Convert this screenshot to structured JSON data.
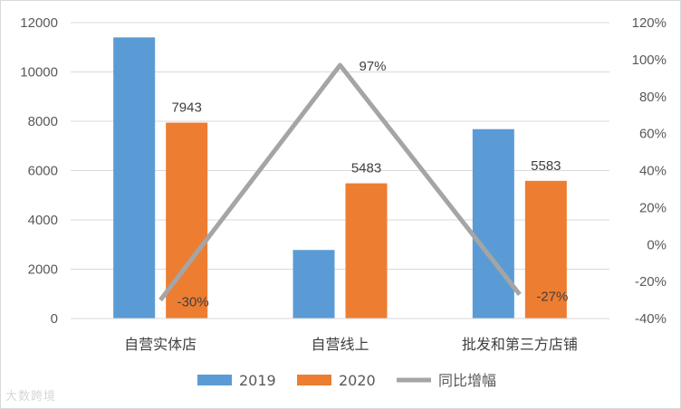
{
  "chart_data": {
    "type": "bar",
    "categories": [
      "自营实体店",
      "自营线上",
      "批发和第三方店铺"
    ],
    "series": [
      {
        "name": "2019",
        "kind": "bar",
        "axis": "left",
        "color": "#5B9BD5",
        "values": [
          11400,
          2780,
          7680
        ],
        "data_labels": [
          null,
          null,
          null
        ]
      },
      {
        "name": "2020",
        "kind": "bar",
        "axis": "left",
        "color": "#ED7D31",
        "values": [
          7943,
          5483,
          5583
        ],
        "data_labels": [
          "7943",
          "5483",
          "5583"
        ]
      },
      {
        "name": "同比增幅",
        "kind": "line",
        "axis": "right",
        "color": "#A5A5A5",
        "values": [
          -30,
          97,
          -27
        ],
        "data_labels": [
          "-30%",
          "97%",
          "-27%"
        ]
      }
    ],
    "y_left": {
      "min": 0,
      "max": 12000,
      "step": 2000,
      "ticks": [
        "0",
        "2000",
        "4000",
        "6000",
        "8000",
        "10000",
        "12000"
      ]
    },
    "y_right": {
      "min": -40,
      "max": 120,
      "step": 20,
      "ticks": [
        "-40%",
        "-20%",
        "0%",
        "20%",
        "40%",
        "60%",
        "80%",
        "100%",
        "120%"
      ]
    },
    "grid": true,
    "legend_position": "bottom"
  },
  "watermark": "大数跨境"
}
